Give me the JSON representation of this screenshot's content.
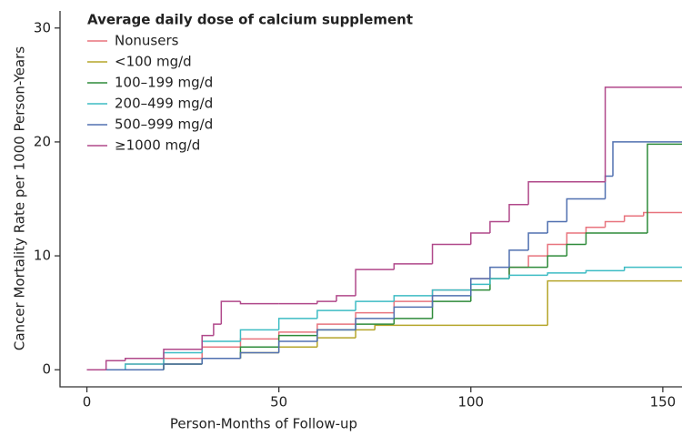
{
  "chart_data": {
    "type": "step",
    "legend_title": "Average daily dose of calcium supplement",
    "x_label": "Person-Months of Follow-up",
    "y_label": "Cancer Mortality Rate per 1000 Person-Years",
    "xlim": [
      -7,
      155
    ],
    "ylim": [
      -1.5,
      31.5
    ],
    "xticks": [
      0,
      50,
      100,
      150
    ],
    "yticks": [
      0,
      10,
      20,
      30
    ],
    "legend": "upper left",
    "series": [
      {
        "name": "Nonusers",
        "color": "#e8737d",
        "x": [
          0,
          10,
          20,
          30,
          40,
          50,
          60,
          70,
          80,
          90,
          100,
          110,
          115,
          120,
          125,
          130,
          135,
          140,
          145,
          155
        ],
        "values": [
          0,
          0.5,
          1,
          2,
          2.7,
          3.3,
          4,
          5,
          6,
          7,
          8,
          9,
          10,
          11,
          12,
          12.5,
          13,
          13.5,
          13.8,
          13.8
        ]
      },
      {
        "name": "<100 mg/d",
        "color": "#b5a52a",
        "x": [
          0,
          20,
          30,
          40,
          50,
          60,
          70,
          75,
          120,
          155
        ],
        "values": [
          0,
          0.5,
          1,
          1.5,
          2,
          2.8,
          3.5,
          3.9,
          7.8,
          7.8
        ]
      },
      {
        "name": "100–199 mg/d",
        "color": "#2e8b3a",
        "x": [
          0,
          20,
          30,
          40,
          50,
          60,
          70,
          80,
          90,
          100,
          105,
          110,
          120,
          125,
          130,
          146,
          155
        ],
        "values": [
          0,
          0.5,
          1,
          2,
          3,
          3.5,
          4,
          4.5,
          6,
          7,
          8,
          9,
          10,
          11,
          12,
          19.8,
          19.8
        ]
      },
      {
        "name": "200–499 mg/d",
        "color": "#3dbcc4",
        "x": [
          0,
          10,
          20,
          30,
          40,
          50,
          60,
          70,
          80,
          90,
          100,
          105,
          110,
          120,
          130,
          140,
          155
        ],
        "values": [
          0,
          0.5,
          1.5,
          2.5,
          3.5,
          4.5,
          5.2,
          6,
          6.5,
          7,
          7.5,
          8,
          8.3,
          8.5,
          8.7,
          9,
          9
        ]
      },
      {
        "name": "500–999 mg/d",
        "color": "#5070b0",
        "x": [
          0,
          20,
          30,
          40,
          50,
          60,
          70,
          80,
          90,
          100,
          105,
          110,
          115,
          120,
          125,
          135,
          137,
          155
        ],
        "values": [
          0,
          0.5,
          1,
          1.5,
          2.5,
          3.5,
          4.5,
          5.5,
          6.5,
          8,
          9,
          10.5,
          12,
          13,
          15,
          17,
          20,
          20
        ]
      },
      {
        "name": "≥1000 mg/d",
        "color": "#b0488a",
        "x": [
          0,
          5,
          10,
          20,
          30,
          33,
          35,
          40,
          50,
          60,
          65,
          70,
          80,
          90,
          100,
          105,
          110,
          115,
          135,
          155
        ],
        "values": [
          0,
          0.8,
          1,
          1.8,
          3,
          4,
          6,
          5.8,
          5.8,
          6,
          6.5,
          8.8,
          9.3,
          11,
          12,
          13,
          14.5,
          16.5,
          24.8,
          24.8
        ]
      }
    ]
  }
}
